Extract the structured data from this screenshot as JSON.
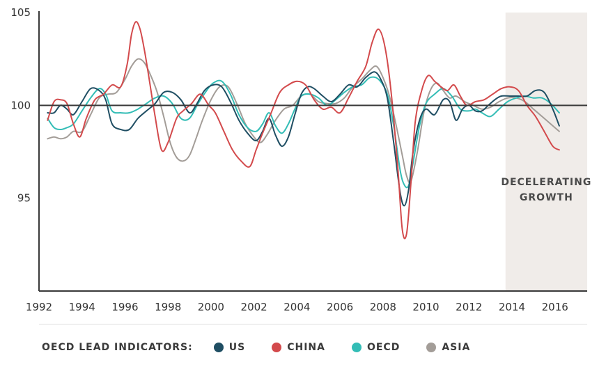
{
  "chart_data": {
    "type": "line",
    "title": "",
    "xlabel": "",
    "ylabel": "",
    "xlim": [
      1992,
      2017.5
    ],
    "ylim": [
      90.0,
      105.0
    ],
    "x_ticks": [
      "1992",
      "1994",
      "1996",
      "1998",
      "2000",
      "2002",
      "2004",
      "2006",
      "2008",
      "2010",
      "2012",
      "2014",
      "2016"
    ],
    "y_ticks": [
      "105",
      "100",
      "95"
    ],
    "reference_line": 100,
    "shaded_region": {
      "from": 2013.7,
      "to": 2017.5,
      "label_lines": [
        "DECELERATING",
        "GROWTH"
      ]
    },
    "legend": {
      "title": "OECD LEAD INDICATORS:",
      "placement": "bottom"
    },
    "series": [
      {
        "name": "US",
        "color": "#1f4e63",
        "x": [
          1992.4,
          1992.7,
          1993.0,
          1993.3,
          1993.6,
          1994.0,
          1994.4,
          1994.8,
          1995.1,
          1995.4,
          1995.8,
          1996.2,
          1996.6,
          1997.0,
          1997.4,
          1997.8,
          1998.2,
          1998.6,
          1999.0,
          1999.3,
          1999.7,
          2000.1,
          2000.5,
          2000.9,
          2001.3,
          2001.7,
          2002.1,
          2002.4,
          2002.7,
          2003.0,
          2003.3,
          2003.6,
          2003.9,
          2004.2,
          2004.5,
          2004.8,
          2005.2,
          2005.6,
          2006.0,
          2006.4,
          2006.8,
          2007.2,
          2007.6,
          2007.9,
          2008.2,
          2008.5,
          2008.8,
          2009.0,
          2009.2,
          2009.4,
          2009.7,
          2010.0,
          2010.4,
          2010.8,
          2011.1,
          2011.4,
          2011.7,
          2012.0,
          2012.3,
          2012.6,
          2012.9,
          2013.2,
          2013.5,
          2013.9,
          2014.3,
          2014.7,
          2015.1,
          2015.5,
          2015.9,
          2016.2
        ],
        "values": [
          99.6,
          99.6,
          100.0,
          99.8,
          99.5,
          100.2,
          100.9,
          100.8,
          100.3,
          99.0,
          98.7,
          98.7,
          99.3,
          99.7,
          100.1,
          100.7,
          100.7,
          100.3,
          99.6,
          100.0,
          100.8,
          101.1,
          101.0,
          100.2,
          99.2,
          98.5,
          98.1,
          98.6,
          99.3,
          98.4,
          97.8,
          98.3,
          99.5,
          100.6,
          101.0,
          100.9,
          100.5,
          100.2,
          100.6,
          101.1,
          101.0,
          101.5,
          101.8,
          101.4,
          100.4,
          98.0,
          95.3,
          94.6,
          95.5,
          97.5,
          99.2,
          99.8,
          99.5,
          100.3,
          100.2,
          99.2,
          99.8,
          100.0,
          99.7,
          99.7,
          100.0,
          100.3,
          100.5,
          100.5,
          100.5,
          100.5,
          100.8,
          100.7,
          99.8,
          98.9
        ]
      },
      {
        "name": "CHINA",
        "color": "#d34a4c",
        "x": [
          1992.4,
          1992.7,
          1993.0,
          1993.3,
          1993.6,
          1993.9,
          1994.2,
          1994.6,
          1995.0,
          1995.4,
          1995.8,
          1996.1,
          1996.3,
          1996.5,
          1996.7,
          1996.9,
          1997.1,
          1997.4,
          1997.7,
          1998.0,
          1998.4,
          1998.7,
          1999.1,
          1999.5,
          1999.9,
          2000.2,
          2000.6,
          2001.0,
          2001.4,
          2001.8,
          2002.1,
          2002.4,
          2002.8,
          2003.2,
          2003.6,
          2004.0,
          2004.4,
          2004.8,
          2005.2,
          2005.6,
          2006.0,
          2006.4,
          2006.8,
          2007.2,
          2007.5,
          2007.8,
          2008.1,
          2008.4,
          2008.7,
          2008.9,
          2009.1,
          2009.3,
          2009.5,
          2009.8,
          2010.1,
          2010.4,
          2010.7,
          2011.0,
          2011.3,
          2011.6,
          2011.9,
          2012.3,
          2012.7,
          2013.1,
          2013.5,
          2013.9,
          2014.3,
          2014.7,
          2015.1,
          2015.5,
          2015.9,
          2016.2
        ],
        "values": [
          99.2,
          100.2,
          100.3,
          100.1,
          99.0,
          98.3,
          99.3,
          100.3,
          100.6,
          101.1,
          101.0,
          102.2,
          103.8,
          104.5,
          104.1,
          103.0,
          101.6,
          99.4,
          97.6,
          98.0,
          99.3,
          99.7,
          100.1,
          100.6,
          100.0,
          99.6,
          98.6,
          97.6,
          97.0,
          96.7,
          97.6,
          98.5,
          99.6,
          100.7,
          101.1,
          101.3,
          101.1,
          100.3,
          99.8,
          99.9,
          99.6,
          100.4,
          101.3,
          102.1,
          103.4,
          104.1,
          103.1,
          100.5,
          96.5,
          93.3,
          93.1,
          95.8,
          99.1,
          100.8,
          101.6,
          101.3,
          101.0,
          100.8,
          101.1,
          100.5,
          100.0,
          100.2,
          100.3,
          100.6,
          100.9,
          101.0,
          100.8,
          100.0,
          99.4,
          98.6,
          97.8,
          97.6
        ]
      },
      {
        "name": "OECD",
        "color": "#33bdb6",
        "x": [
          1992.4,
          1992.7,
          1993.0,
          1993.3,
          1993.6,
          1994.0,
          1994.4,
          1994.8,
          1995.1,
          1995.4,
          1995.8,
          1996.2,
          1996.6,
          1997.0,
          1997.4,
          1997.8,
          1998.2,
          1998.6,
          1999.0,
          1999.4,
          1999.8,
          2000.1,
          2000.5,
          2000.9,
          2001.3,
          2001.7,
          2002.1,
          2002.4,
          2002.7,
          2003.0,
          2003.3,
          2003.6,
          2003.9,
          2004.2,
          2004.6,
          2005.0,
          2005.4,
          2005.8,
          2006.2,
          2006.6,
          2007.0,
          2007.4,
          2007.8,
          2008.2,
          2008.5,
          2008.8,
          2009.0,
          2009.2,
          2009.4,
          2009.7,
          2010.0,
          2010.4,
          2010.8,
          2011.2,
          2011.6,
          2012.0,
          2012.3,
          2012.6,
          2013.0,
          2013.4,
          2013.8,
          2014.2,
          2014.6,
          2015.0,
          2015.4,
          2015.8,
          2016.2
        ],
        "values": [
          99.3,
          98.8,
          98.7,
          98.8,
          99.0,
          99.7,
          100.4,
          100.9,
          100.6,
          99.7,
          99.6,
          99.6,
          99.8,
          100.1,
          100.4,
          100.5,
          100.1,
          99.3,
          99.3,
          100.1,
          100.8,
          101.2,
          101.3,
          100.6,
          99.5,
          98.8,
          98.6,
          99.0,
          99.6,
          98.9,
          98.5,
          99.0,
          99.8,
          100.5,
          100.6,
          100.4,
          100.0,
          100.3,
          100.7,
          101.0,
          101.1,
          101.5,
          101.4,
          100.6,
          98.9,
          96.5,
          95.7,
          95.7,
          96.9,
          98.9,
          100.1,
          100.6,
          100.9,
          100.5,
          99.8,
          99.7,
          99.8,
          99.6,
          99.4,
          99.8,
          100.2,
          100.4,
          100.5,
          100.4,
          100.4,
          100.1,
          99.6
        ]
      },
      {
        "name": "ASIA",
        "color": "#a39d98",
        "x": [
          1992.4,
          1992.7,
          1993.0,
          1993.3,
          1993.6,
          1994.0,
          1994.4,
          1994.8,
          1995.2,
          1995.6,
          1996.0,
          1996.3,
          1996.6,
          1996.9,
          1997.2,
          1997.5,
          1997.8,
          1998.1,
          1998.4,
          1998.7,
          1999.0,
          1999.3,
          1999.6,
          2000.0,
          2000.4,
          2000.8,
          2001.2,
          2001.6,
          2002.0,
          2002.3,
          2002.6,
          2003.0,
          2003.4,
          2003.8,
          2004.2,
          2004.6,
          2005.0,
          2005.4,
          2005.8,
          2006.2,
          2006.6,
          2007.0,
          2007.4,
          2007.7,
          2008.0,
          2008.3,
          2008.6,
          2008.9,
          2009.1,
          2009.3,
          2009.6,
          2009.9,
          2010.2,
          2010.5,
          2010.8,
          2011.1,
          2011.4,
          2011.8,
          2012.2,
          2012.6,
          2013.0,
          2013.4,
          2013.8,
          2014.2,
          2014.6,
          2015.0,
          2015.4,
          2015.8,
          2016.2
        ],
        "values": [
          98.2,
          98.3,
          98.2,
          98.3,
          98.6,
          98.6,
          99.5,
          100.4,
          100.6,
          100.7,
          101.4,
          102.1,
          102.5,
          102.3,
          101.6,
          100.7,
          99.4,
          98.0,
          97.2,
          97.0,
          97.3,
          98.2,
          99.2,
          100.3,
          101.0,
          101.0,
          100.1,
          99.0,
          98.3,
          98.0,
          98.4,
          99.2,
          99.8,
          100.0,
          100.5,
          100.6,
          100.2,
          100.1,
          100.1,
          100.4,
          101.0,
          101.4,
          101.9,
          102.1,
          101.5,
          100.5,
          99.0,
          97.3,
          96.2,
          95.9,
          97.5,
          99.6,
          100.8,
          101.2,
          100.8,
          100.4,
          100.5,
          100.2,
          100.0,
          99.8,
          99.9,
          100.2,
          100.4,
          100.4,
          100.2,
          99.8,
          99.4,
          99.0,
          98.6
        ]
      }
    ]
  }
}
